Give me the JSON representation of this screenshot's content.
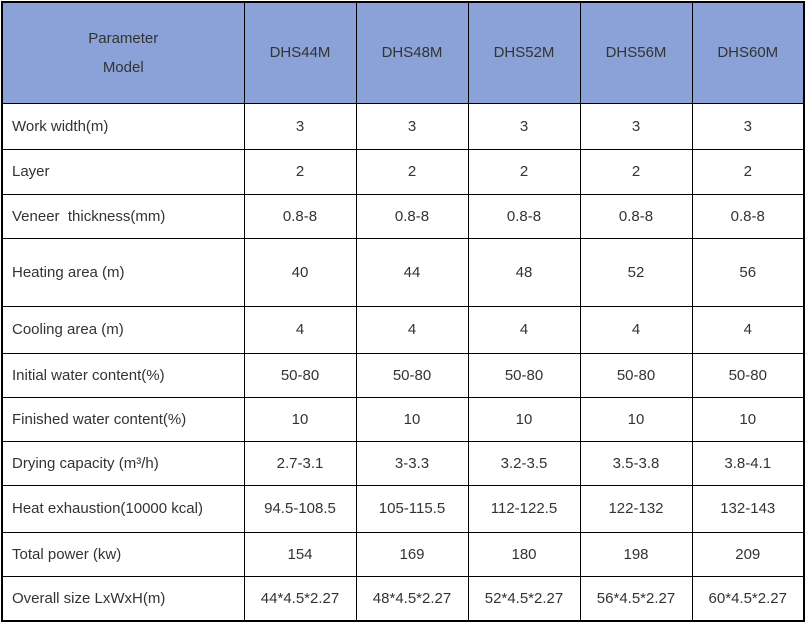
{
  "colors": {
    "header_bg": "#8AA2D7",
    "border": "#000000",
    "text": "#333333"
  },
  "table": {
    "header": {
      "corner_line1": "Parameter",
      "corner_line2": "Model",
      "models": [
        "DHS44M",
        "DHS48M",
        "DHS52M",
        "DHS56M",
        "DHS60M"
      ]
    },
    "rows": [
      {
        "label": "Work width(m)",
        "values": [
          "3",
          "3",
          "3",
          "3",
          "3"
        ]
      },
      {
        "label": "Layer",
        "values": [
          "2",
          "2",
          "2",
          "2",
          "2"
        ]
      },
      {
        "label": "Veneer  thickness(mm)",
        "values": [
          "0.8-8",
          "0.8-8",
          "0.8-8",
          "0.8-8",
          "0.8-8"
        ]
      },
      {
        "label": "Heating area (m)",
        "values": [
          "40",
          "44",
          "48",
          "52",
          "56"
        ]
      },
      {
        "label": "Cooling area (m)",
        "values": [
          "4",
          "4",
          "4",
          "4",
          "4"
        ]
      },
      {
        "label": "Initial water content(%)",
        "values": [
          "50-80",
          "50-80",
          "50-80",
          "50-80",
          "50-80"
        ]
      },
      {
        "label": "Finished water content(%)",
        "values": [
          "10",
          "10",
          "10",
          "10",
          "10"
        ]
      },
      {
        "label": "Drying capacity (m³/h)",
        "values": [
          "2.7-3.1",
          "3-3.3",
          "3.2-3.5",
          "3.5-3.8",
          "3.8-4.1"
        ]
      },
      {
        "label": "Heat exhaustion(10000 kcal)",
        "values": [
          "94.5-108.5",
          "105-115.5",
          "112-122.5",
          "122-132",
          "132-143"
        ]
      },
      {
        "label": "Total power (kw)",
        "values": [
          "154",
          "169",
          "180",
          "198",
          "209"
        ]
      },
      {
        "label": "Overall size LxWxH(m)",
        "values": [
          "44*4.5*2.27",
          "48*4.5*2.27",
          "52*4.5*2.27",
          "56*4.5*2.27",
          "60*4.5*2.27"
        ]
      }
    ]
  },
  "chart_data": {
    "type": "table",
    "title": "Veneer dryer specification table",
    "categories": [
      "DHS44M",
      "DHS48M",
      "DHS52M",
      "DHS56M",
      "DHS60M"
    ],
    "series": [
      {
        "name": "Work width(m)",
        "values": [
          3,
          3,
          3,
          3,
          3
        ]
      },
      {
        "name": "Layer",
        "values": [
          2,
          2,
          2,
          2,
          2
        ]
      },
      {
        "name": "Veneer thickness(mm)",
        "values": [
          "0.8-8",
          "0.8-8",
          "0.8-8",
          "0.8-8",
          "0.8-8"
        ]
      },
      {
        "name": "Heating area (m)",
        "values": [
          40,
          44,
          48,
          52,
          56
        ]
      },
      {
        "name": "Cooling area (m)",
        "values": [
          4,
          4,
          4,
          4,
          4
        ]
      },
      {
        "name": "Initial water content(%)",
        "values": [
          "50-80",
          "50-80",
          "50-80",
          "50-80",
          "50-80"
        ]
      },
      {
        "name": "Finished water content(%)",
        "values": [
          10,
          10,
          10,
          10,
          10
        ]
      },
      {
        "name": "Drying capacity (m³/h)",
        "values": [
          "2.7-3.1",
          "3-3.3",
          "3.2-3.5",
          "3.5-3.8",
          "3.8-4.1"
        ]
      },
      {
        "name": "Heat exhaustion(10000 kcal)",
        "values": [
          "94.5-108.5",
          "105-115.5",
          "112-122.5",
          "122-132",
          "132-143"
        ]
      },
      {
        "name": "Total power (kw)",
        "values": [
          154,
          169,
          180,
          198,
          209
        ]
      },
      {
        "name": "Overall size LxWxH(m)",
        "values": [
          "44*4.5*2.27",
          "48*4.5*2.27",
          "52*4.5*2.27",
          "56*4.5*2.27",
          "60*4.5*2.27"
        ]
      }
    ]
  }
}
